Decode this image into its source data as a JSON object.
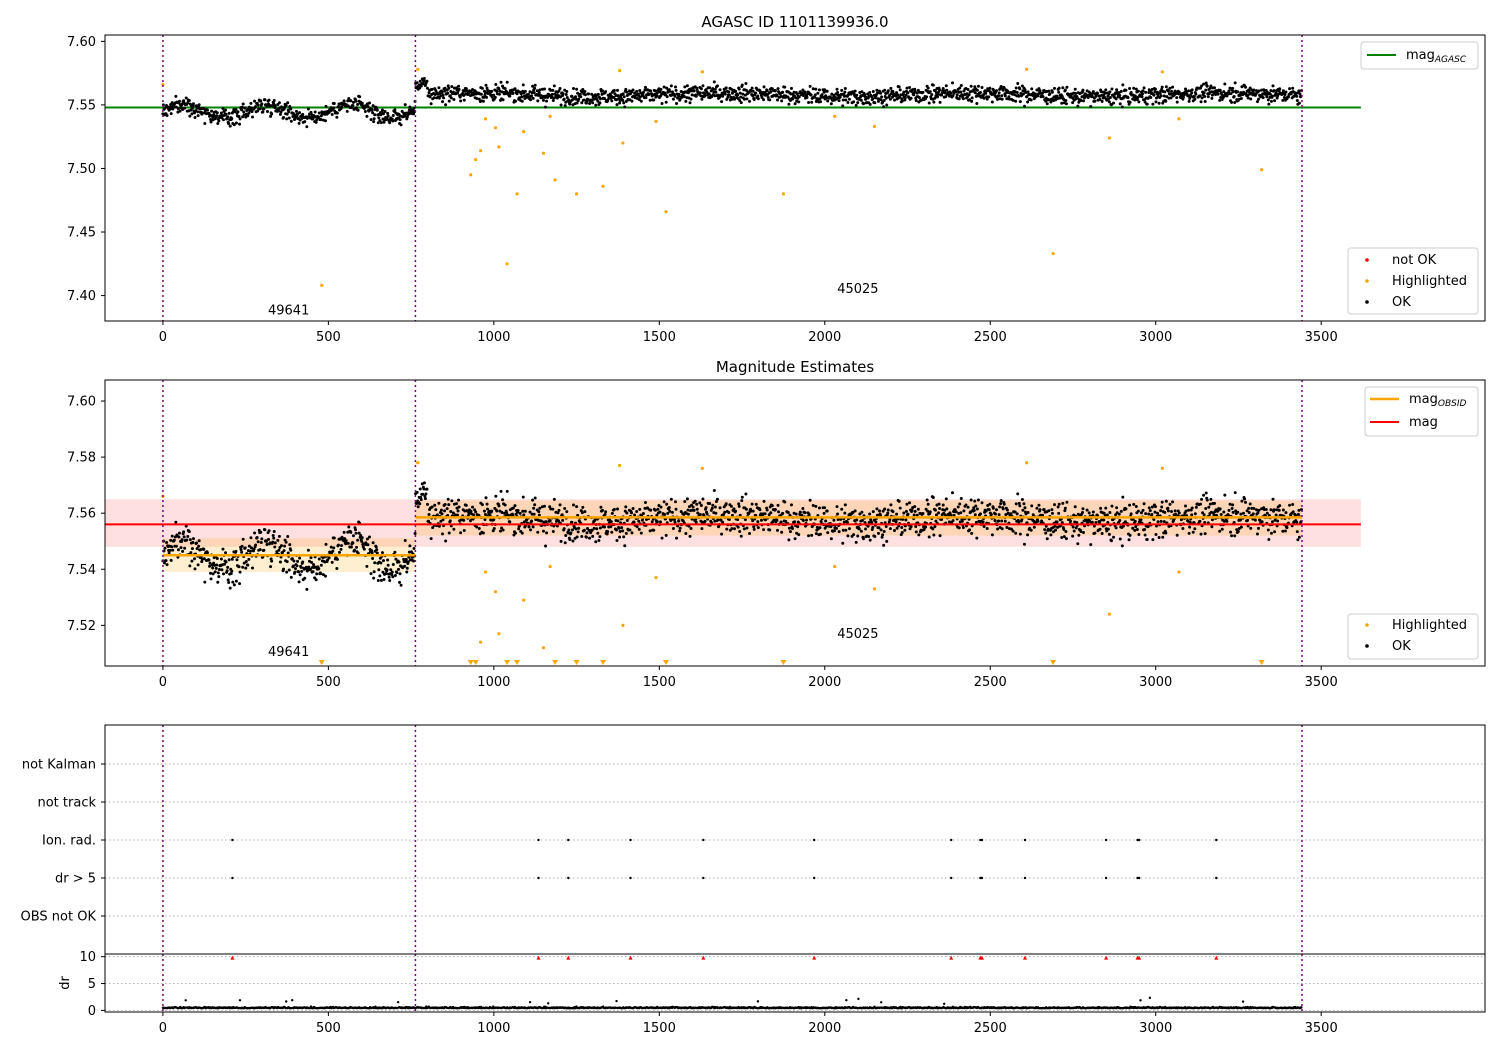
{
  "figure": {
    "title_top": "AGASC ID 1101139936.0",
    "title_mid": "Magnitude Estimates"
  },
  "chart_data": [
    {
      "type": "scatter",
      "panel": "top",
      "title": "AGASC ID 1101139936.0",
      "xlim": [
        -175,
        3995
      ],
      "ylim": [
        7.38,
        7.605
      ],
      "xticks": [
        0,
        500,
        1000,
        1500,
        2000,
        2500,
        3000,
        3500
      ],
      "yticks": [
        "7.40",
        "7.45",
        "7.50",
        "7.55",
        "7.60"
      ],
      "obsid_boundaries": [
        0,
        763,
        3442
      ],
      "obsid_labels": [
        {
          "text": "49641",
          "x": 380,
          "y": 7.385
        },
        {
          "text": "45025",
          "x": 2100,
          "y": 7.402
        }
      ],
      "mag_agasc": {
        "label": "mag",
        "subscript": "AGASC",
        "value": 7.548,
        "color": "#008000",
        "x_range": [
          -175,
          3620
        ]
      },
      "ok_scatter": {
        "label": "OK",
        "color": "#000000",
        "n_points": 2200,
        "segments": [
          {
            "x": [
              0,
              763
            ],
            "mean": 7.545,
            "spread": 0.006
          },
          {
            "x": [
              763,
              3442
            ],
            "mean": 7.558,
            "spread": 0.006
          }
        ]
      },
      "highlighted_points": {
        "label": "Highlighted",
        "color": "#ffa500",
        "points": [
          [
            0,
            7.566
          ],
          [
            480,
            7.408
          ],
          [
            770,
            7.578
          ],
          [
            930,
            7.495
          ],
          [
            945,
            7.507
          ],
          [
            960,
            7.514
          ],
          [
            975,
            7.539
          ],
          [
            1005,
            7.532
          ],
          [
            1015,
            7.517
          ],
          [
            1040,
            7.425
          ],
          [
            1070,
            7.48
          ],
          [
            1090,
            7.529
          ],
          [
            1150,
            7.512
          ],
          [
            1170,
            7.541
          ],
          [
            1185,
            7.491
          ],
          [
            1250,
            7.48
          ],
          [
            1330,
            7.486
          ],
          [
            1380,
            7.577
          ],
          [
            1390,
            7.52
          ],
          [
            1490,
            7.537
          ],
          [
            1520,
            7.466
          ],
          [
            1630,
            7.576
          ],
          [
            1875,
            7.48
          ],
          [
            2030,
            7.541
          ],
          [
            2150,
            7.533
          ],
          [
            2610,
            7.578
          ],
          [
            2690,
            7.433
          ],
          [
            2860,
            7.524
          ],
          [
            3020,
            7.576
          ],
          [
            3070,
            7.539
          ],
          [
            3320,
            7.499
          ]
        ]
      },
      "not_ok_points": {
        "label": "not OK",
        "color": "#ff0000",
        "points": []
      },
      "legend_upper": [
        "mag_AGASC"
      ],
      "legend_lower": [
        "not OK",
        "Highlighted",
        "OK"
      ],
      "legend_placement": [
        "upper right",
        "lower right"
      ]
    },
    {
      "type": "scatter",
      "panel": "middle",
      "title": "Magnitude Estimates",
      "xlim": [
        -175,
        3995
      ],
      "ylim": [
        7.5055,
        7.6075
      ],
      "xticks": [
        0,
        500,
        1000,
        1500,
        2000,
        2500,
        3000,
        3500
      ],
      "yticks": [
        "7.52",
        "7.54",
        "7.56",
        "7.58",
        "7.60"
      ],
      "obsid_boundaries": [
        0,
        763,
        3442
      ],
      "obsid_labels": [
        {
          "text": "49641",
          "x": 380,
          "y": 7.509
        },
        {
          "text": "45025",
          "x": 2100,
          "y": 7.5155
        }
      ],
      "mag": {
        "label": "mag",
        "value": 7.556,
        "band": [
          7.548,
          7.565
        ],
        "color": "#ff0000",
        "x_range": [
          -175,
          3620
        ]
      },
      "mag_obsid": {
        "label": "mag",
        "subscript": "OBSID",
        "color": "#ffa500",
        "segments": [
          {
            "x": [
              0,
              763
            ],
            "value": 7.545,
            "band": [
              7.539,
              7.551
            ]
          },
          {
            "x": [
              763,
              3442
            ],
            "value": 7.5585,
            "band": [
              7.552,
              7.5645
            ]
          }
        ]
      },
      "ok_scatter": {
        "label": "OK",
        "color": "#000000",
        "n_points": 2200
      },
      "highlighted_points": {
        "label": "Highlighted",
        "color": "#ffa500"
      },
      "below_axis_markers_x": [
        480,
        930,
        945,
        1040,
        1070,
        1185,
        1250,
        1330,
        1520,
        1875,
        2690,
        3320
      ],
      "legend_upper": [
        "mag_OBSID",
        "mag"
      ],
      "legend_lower": [
        "Highlighted",
        "OK"
      ],
      "legend_placement": [
        "upper right",
        "lower right"
      ]
    },
    {
      "type": "scatter",
      "panel": "flags",
      "xlim": [
        -175,
        3995
      ],
      "categories": [
        "not Kalman",
        "not track",
        "Ion. rad.",
        "dr > 5",
        "OBS not OK"
      ],
      "flag_points": {
        "Ion. rad.": [
          210,
          1135,
          1225,
          1413,
          1633,
          1968,
          2382,
          2470,
          2475,
          2605,
          2850,
          2945,
          2950,
          3183
        ],
        "dr > 5": [
          210,
          1135,
          1225,
          1413,
          1633,
          1968,
          2382,
          2470,
          2475,
          2605,
          2850,
          2945,
          2950,
          3183
        ],
        "not Kalman": [],
        "not track": [],
        "OBS not OK": []
      },
      "obsid_boundaries": [
        0,
        763,
        3442
      ]
    },
    {
      "type": "scatter",
      "panel": "dr",
      "ylabel": "dr",
      "xlim": [
        -175,
        3995
      ],
      "ylim": [
        -0.3,
        10.5
      ],
      "xticks": [
        0,
        500,
        1000,
        1500,
        2000,
        2500,
        3000,
        3500
      ],
      "yticks": [
        "0",
        "5",
        "10"
      ],
      "clipped_high_x": [
        210,
        1135,
        1225,
        1413,
        1633,
        1968,
        2382,
        2470,
        2475,
        2605,
        2850,
        2945,
        2950,
        3183
      ],
      "ok_points_mean": 0.4,
      "obsid_boundaries": [
        0,
        763,
        3442
      ]
    }
  ]
}
